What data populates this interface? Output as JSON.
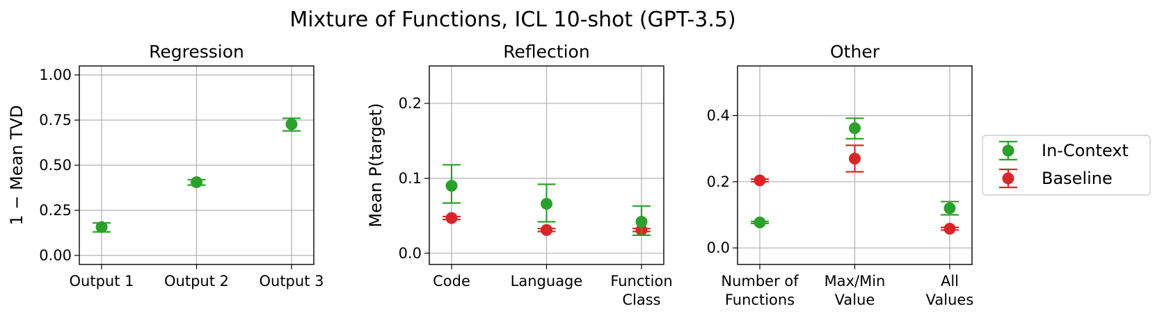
{
  "chart_data": {
    "title": "Mixture of Functions, ICL 10-shot (GPT-3.5)",
    "type": "scatter",
    "errorbars": true,
    "grid": true,
    "legend": {
      "placement": "center-right, outside",
      "entries": [
        {
          "name": "In-Context",
          "color": "#2ca02c"
        },
        {
          "name": "Baseline",
          "color": "#d62728"
        }
      ]
    },
    "panels": [
      {
        "title": "Regression",
        "ylabel": "1 − Mean TVD",
        "ylim": [
          -0.05,
          1.05
        ],
        "yticks": [
          0.0,
          0.25,
          0.5,
          0.75,
          1.0
        ],
        "ytick_labels": [
          "0.00",
          "0.25",
          "0.50",
          "0.75",
          "1.00"
        ],
        "categories": [
          [
            "Output 1"
          ],
          [
            "Output 2"
          ],
          [
            "Output 3"
          ]
        ],
        "series": [
          {
            "name": "In-Context",
            "color": "#2ca02c",
            "values": [
              0.157,
              0.406,
              0.727
            ],
            "err_low": [
              0.13,
              0.39,
              0.69
            ],
            "err_high": [
              0.18,
              0.42,
              0.76
            ]
          }
        ]
      },
      {
        "title": "Reflection",
        "ylabel": "Mean P(target)",
        "ylim": [
          -0.015,
          0.25
        ],
        "yticks": [
          0.0,
          0.1,
          0.2
        ],
        "ytick_labels": [
          "0.0",
          "0.1",
          "0.2"
        ],
        "categories": [
          [
            "Code"
          ],
          [
            "Language"
          ],
          [
            "Function",
            "Class"
          ]
        ],
        "series": [
          {
            "name": "In-Context",
            "color": "#2ca02c",
            "values": [
              0.09,
              0.066,
              0.042
            ],
            "err_low": [
              0.067,
              0.042,
              0.024
            ],
            "err_high": [
              0.118,
              0.092,
              0.063
            ]
          },
          {
            "name": "Baseline",
            "color": "#d62728",
            "values": [
              0.047,
              0.031,
              0.031
            ],
            "err_low": [
              0.045,
              0.029,
              0.029
            ],
            "err_high": [
              0.049,
              0.033,
              0.033
            ]
          }
        ]
      },
      {
        "title": "Other",
        "ylabel": "",
        "ylim": [
          -0.05,
          0.55
        ],
        "yticks": [
          0.0,
          0.2,
          0.4
        ],
        "ytick_labels": [
          "0.0",
          "0.2",
          "0.4"
        ],
        "categories": [
          [
            "Number of",
            "Functions"
          ],
          [
            "Max/Min",
            "Value"
          ],
          [
            "All",
            "Values"
          ]
        ],
        "series": [
          {
            "name": "In-Context",
            "color": "#2ca02c",
            "values": [
              0.077,
              0.362,
              0.12
            ],
            "err_low": [
              0.074,
              0.33,
              0.1
            ],
            "err_high": [
              0.08,
              0.392,
              0.14
            ]
          },
          {
            "name": "Baseline",
            "color": "#d62728",
            "values": [
              0.204,
              0.27,
              0.058
            ],
            "err_low": [
              0.2,
              0.23,
              0.054
            ],
            "err_high": [
              0.208,
              0.31,
              0.062
            ]
          }
        ]
      }
    ]
  }
}
